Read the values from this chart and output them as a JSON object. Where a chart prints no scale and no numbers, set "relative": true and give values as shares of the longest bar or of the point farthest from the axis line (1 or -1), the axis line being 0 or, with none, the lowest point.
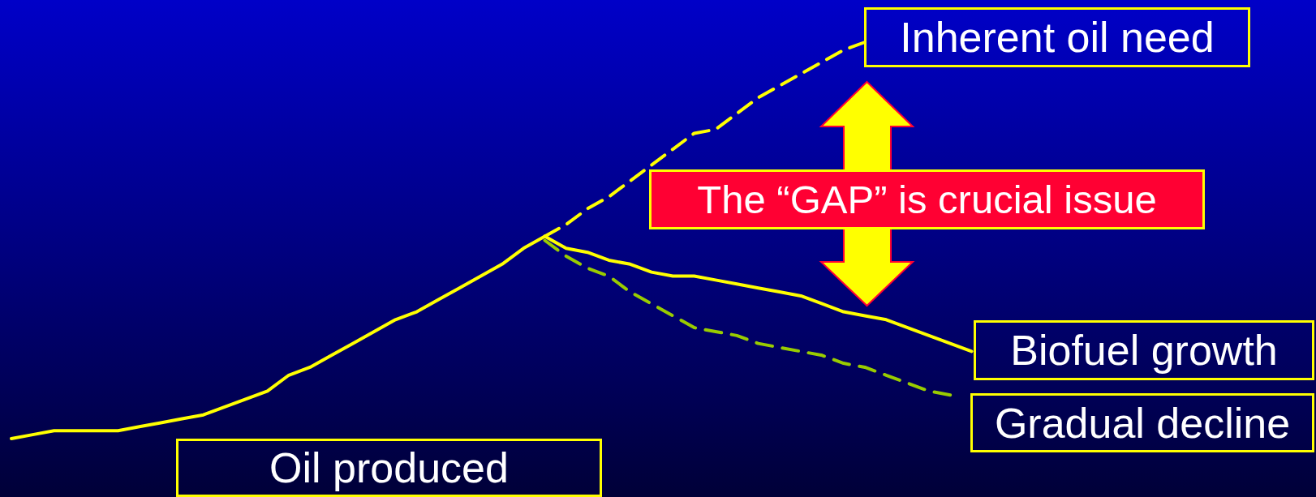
{
  "chart_data": {
    "type": "line",
    "relative": true,
    "categories": [
      null,
      null,
      null,
      null,
      null,
      null,
      null,
      null,
      null,
      null,
      null,
      null,
      null,
      null,
      null,
      null,
      null,
      null,
      null,
      null,
      null,
      null,
      null,
      null,
      null,
      null,
      null,
      null,
      null,
      null,
      null,
      null,
      null,
      null,
      null,
      null,
      null,
      null,
      null,
      null,
      null,
      null,
      null,
      null,
      null,
      null
    ],
    "series": [
      {
        "name": "Oil produced",
        "color": "#ffff00",
        "line_style": "solid",
        "values": [
          0,
          0.01,
          0.02,
          0.02,
          0.02,
          0.02,
          0.03,
          0.04,
          0.05,
          0.06,
          0.08,
          0.1,
          0.12,
          0.16,
          0.18,
          0.21,
          0.24,
          0.27,
          0.3,
          0.32,
          0.35,
          0.38,
          0.41,
          0.44,
          0.48,
          0.51,
          null,
          null,
          null,
          null,
          null,
          null,
          null,
          null,
          null,
          null,
          null,
          null,
          null,
          null,
          null,
          null,
          null,
          null,
          null,
          null
        ]
      },
      {
        "name": "Inherent oil need",
        "color": "#ffff00",
        "line_style": "dashed",
        "values": [
          null,
          null,
          null,
          null,
          null,
          null,
          null,
          null,
          null,
          null,
          null,
          null,
          null,
          null,
          null,
          null,
          null,
          null,
          null,
          null,
          null,
          null,
          null,
          null,
          null,
          0.51,
          0.54,
          0.58,
          0.61,
          0.65,
          0.69,
          0.73,
          0.77,
          0.78,
          0.82,
          0.86,
          0.89,
          0.92,
          0.95,
          0.98,
          1,
          null,
          null,
          null,
          null,
          null
        ]
      },
      {
        "name": "Biofuel growth",
        "color": "#ffff00",
        "line_style": "solid",
        "values": [
          null,
          null,
          null,
          null,
          null,
          null,
          null,
          null,
          null,
          null,
          null,
          null,
          null,
          null,
          null,
          null,
          null,
          null,
          null,
          null,
          null,
          null,
          null,
          null,
          null,
          0.51,
          0.48,
          0.47,
          0.45,
          0.44,
          0.42,
          0.41,
          0.41,
          0.4,
          0.39,
          0.38,
          0.37,
          0.36,
          0.34,
          0.32,
          0.31,
          0.3,
          0.28,
          0.26,
          0.24,
          0.22
        ]
      },
      {
        "name": "Gradual decline",
        "color": "#99cc00",
        "line_style": "dashed",
        "values": [
          null,
          null,
          null,
          null,
          null,
          null,
          null,
          null,
          null,
          null,
          null,
          null,
          null,
          null,
          null,
          null,
          null,
          null,
          null,
          null,
          null,
          null,
          null,
          null,
          null,
          0.5,
          0.46,
          0.43,
          0.41,
          0.37,
          0.34,
          0.31,
          0.28,
          0.27,
          0.26,
          0.24,
          0.23,
          0.22,
          0.21,
          0.19,
          0.18,
          0.16,
          0.14,
          0.12,
          0.11,
          null
        ]
      }
    ],
    "annotations": [
      "The “GAP” is crucial issue"
    ]
  }
}
